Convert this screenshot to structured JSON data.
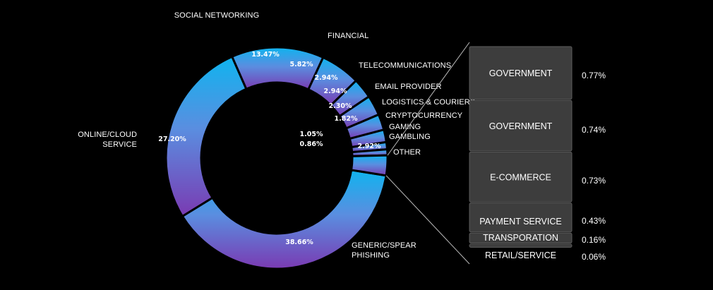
{
  "chart_data": {
    "type": "pie",
    "variant": "donut with bar-of-pie breakdown",
    "segments": [
      {
        "label": "GENERIC/SPEAR PHISHING",
        "value": 38.66,
        "value_label": "38.66%"
      },
      {
        "label": "ONLINE/CLOUD SERVICE",
        "value": 27.2,
        "value_label": "27.20%"
      },
      {
        "label": "SOCIAL NETWORKING",
        "value": 13.47,
        "value_label": "13.47%"
      },
      {
        "label": "FINANCIAL",
        "value": 5.82,
        "value_label": "5.82%"
      },
      {
        "label": "TELECOMMUNICATIONS",
        "value": 2.94,
        "value_label": "2.94%"
      },
      {
        "label": "EMAIL PROVIDER",
        "value": 2.94,
        "value_label": "2.94%"
      },
      {
        "label": "LOGISTICS & COURIERS",
        "value": 2.3,
        "value_label": "2.30%"
      },
      {
        "label": "CRYPTOCURRENCY",
        "value": 1.82,
        "value_label": "1.82%"
      },
      {
        "label": "GAMING",
        "value": 1.05,
        "value_label": "1.05%"
      },
      {
        "label": "GAMBLING",
        "value": 0.86,
        "value_label": "0.86%"
      },
      {
        "label": "OTHER",
        "value": 2.92,
        "value_label": "2.92%"
      }
    ],
    "other_breakdown": [
      {
        "label": "GOVERNMENT",
        "value": 0.77,
        "value_label": "0.77%"
      },
      {
        "label": "GOVERNMENT",
        "value": 0.74,
        "value_label": "0.74%"
      },
      {
        "label": "E-COMMERCE",
        "value": 0.73,
        "value_label": "0.73%"
      },
      {
        "label": "PAYMENT SERVICE",
        "value": 0.43,
        "value_label": "0.43%"
      },
      {
        "label": "TRANSPORATION",
        "value": 0.16,
        "value_label": "0.16%"
      },
      {
        "label": "RETAIL/SERVICE",
        "value": 0.06,
        "value_label": "0.06%"
      }
    ],
    "colors": {
      "background": "#000000",
      "gradient_top": "#0fb4ef",
      "gradient_mid": "#5a8ee0",
      "gradient_bottom": "#7a3ab2",
      "breakdown_box": "#3d3d3d",
      "breakdown_border": "#5a5a5a",
      "separator": "#000000",
      "text": "#ffffff",
      "connector": "#bbbbbb"
    }
  }
}
